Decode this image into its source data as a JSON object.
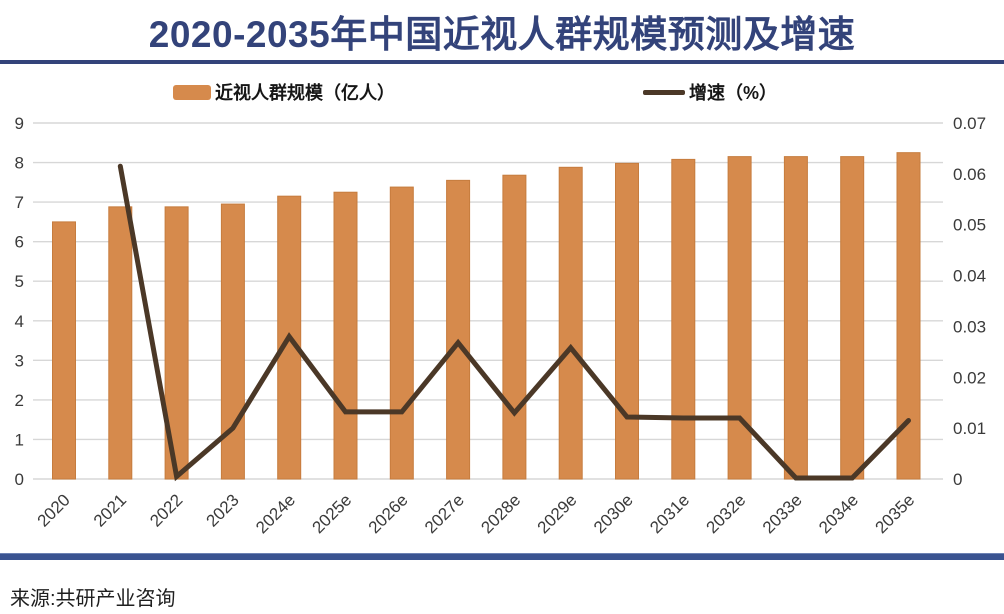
{
  "header": {
    "title": "2020-2035年中国近视人群规模预测及增速"
  },
  "legend": {
    "bar_label": "近视人群规模（亿人）",
    "line_label": "增速（%）"
  },
  "source_text": "来源:共研产业咨询",
  "colors": {
    "title_navy": "#33437A",
    "bar_fill": "#D68A4C",
    "bar_edge": "#C67C3E",
    "line_stroke": "#4B3827",
    "gridline": "#D7D7D7",
    "axis_text": "#3A3A3A",
    "bottom_bar": "#3A5390"
  },
  "chart_data": {
    "type": "bar",
    "title": "2020-2035年中国近视人群规模预测及增速",
    "categories": [
      "2020",
      "2021",
      "2022",
      "2023",
      "2024e",
      "2025e",
      "2026e",
      "2027e",
      "2028e",
      "2029e",
      "2030e",
      "2031e",
      "2032e",
      "2033e",
      "2034e",
      "2035e"
    ],
    "series": [
      {
        "name": "近视人群规模（亿人）",
        "type": "bar",
        "axis": "left",
        "values": [
          6.5,
          6.88,
          6.88,
          6.95,
          7.15,
          7.25,
          7.38,
          7.55,
          7.68,
          7.88,
          7.98,
          8.08,
          8.15,
          8.15,
          8.15,
          8.25
        ]
      },
      {
        "name": "增速（%）",
        "type": "line",
        "axis": "right",
        "values": [
          null,
          0.0615,
          0.0005,
          0.01,
          0.028,
          0.0132,
          0.0132,
          0.0268,
          0.013,
          0.0258,
          0.0122,
          0.012,
          0.012,
          0.0002,
          0.0002,
          0.0115
        ]
      }
    ],
    "left_axis": {
      "min": 0,
      "max": 9,
      "step": 1,
      "tick_labels": [
        "0",
        "1",
        "2",
        "3",
        "4",
        "5",
        "6",
        "7",
        "8",
        "9"
      ]
    },
    "right_axis": {
      "min": 0,
      "max": 0.07,
      "step": 0.01,
      "tick_labels": [
        "0",
        "0.01",
        "0.02",
        "0.03",
        "0.04",
        "0.05",
        "0.06",
        "0.07"
      ]
    },
    "grid": true,
    "legend_position": "top",
    "xlabel": "",
    "ylabel_left": "亿人",
    "ylabel_right": "%"
  }
}
